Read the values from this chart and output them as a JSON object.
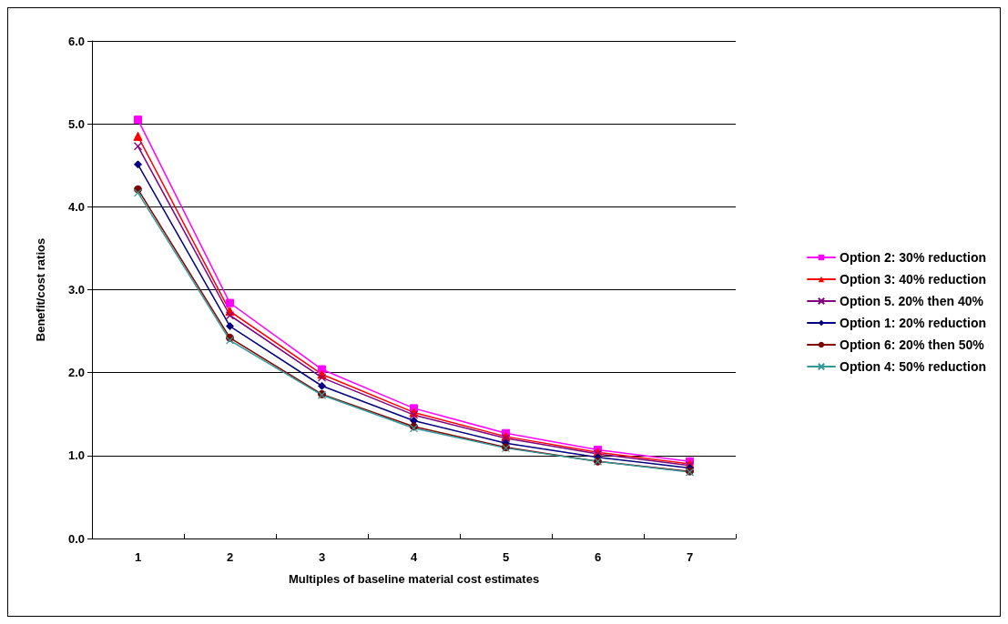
{
  "chart_data": {
    "type": "line",
    "xlabel": "Multiples of baseline material cost estimates",
    "ylabel": "Benefit/cost ratios",
    "categories": [
      "1",
      "2",
      "3",
      "4",
      "5",
      "6",
      "7"
    ],
    "ylim": [
      0,
      6
    ],
    "yticks": [
      {
        "value": 0,
        "label": "0.0"
      },
      {
        "value": 1,
        "label": "1.0"
      },
      {
        "value": 2,
        "label": "2.0"
      },
      {
        "value": 3,
        "label": "3.0"
      },
      {
        "value": 4,
        "label": "4.0"
      },
      {
        "value": 5,
        "label": "5.0"
      },
      {
        "value": 6,
        "label": "6.0"
      }
    ],
    "grid": "y",
    "legend": "right",
    "line_style": "solid",
    "series": [
      {
        "name": "Option 2: 30% reduction",
        "color": "#ff00ff",
        "marker": "square",
        "values": [
          5.05,
          2.84,
          2.04,
          1.57,
          1.27,
          1.07,
          0.93
        ]
      },
      {
        "name": "Option 3: 40% reduction",
        "color": "#ff0000",
        "marker": "triangle",
        "values": [
          4.85,
          2.74,
          1.98,
          1.52,
          1.23,
          1.04,
          0.9
        ]
      },
      {
        "name": "Option 5. 20% then 40%",
        "color": "#800080",
        "marker": "cross",
        "values": [
          4.73,
          2.69,
          1.94,
          1.49,
          1.21,
          1.02,
          0.88
        ]
      },
      {
        "name": "Option 1: 20% reduction",
        "color": "#000080",
        "marker": "diamond",
        "values": [
          4.51,
          2.56,
          1.84,
          1.42,
          1.15,
          0.98,
          0.85
        ]
      },
      {
        "name": "Option 6: 20% then 50%",
        "color": "#800000",
        "marker": "circle",
        "values": [
          4.21,
          2.42,
          1.74,
          1.35,
          1.1,
          0.93,
          0.81
        ]
      },
      {
        "name": "Option 4: 50% reduction",
        "color": "#339999",
        "marker": "cross",
        "values": [
          4.17,
          2.39,
          1.73,
          1.33,
          1.09,
          0.93,
          0.8
        ]
      }
    ]
  }
}
